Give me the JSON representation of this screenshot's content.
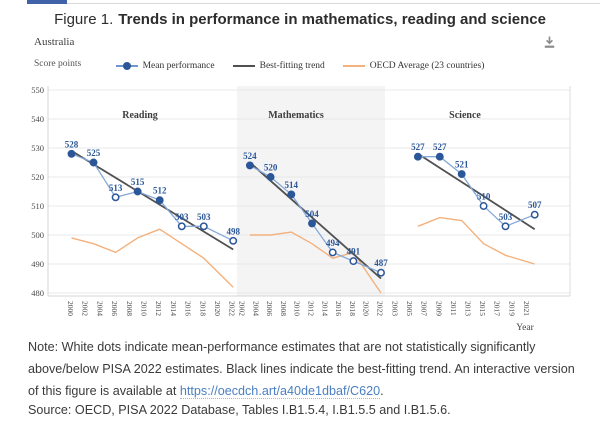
{
  "page": {
    "tab_color": "#3f62a9",
    "link_color": "#4a7fc1",
    "icon_color": "#8b8b8b"
  },
  "header": {
    "figure_label": "Figure 1.",
    "title": "Trends in performance in mathematics, reading and science",
    "country": "Australia"
  },
  "axis": {
    "y_label": "Score points",
    "x_label": "Year"
  },
  "legend": {
    "items": [
      {
        "label": "Mean performance",
        "color": "#2b5798",
        "marker": "dot-line"
      },
      {
        "label": "Best-fitting trend",
        "color": "#505050",
        "marker": "line"
      },
      {
        "label": "OECD Average (23 countries)",
        "color": "#f3b17d",
        "marker": "line"
      }
    ]
  },
  "chart_data": {
    "type": "line",
    "title": "Trends in performance in mathematics, reading and science",
    "country": "Australia",
    "ylabel": "Score points",
    "xlabel": "Year",
    "ylim": [
      480,
      550
    ],
    "yticks": [
      550,
      540,
      530,
      520,
      510,
      500,
      490,
      480
    ],
    "grid": true,
    "legend_position": "top",
    "colors": {
      "mean_point": "#2b5798",
      "mean_line": "#85a9d9",
      "trend_line": "#505050",
      "oecd_line": "#f3b17d",
      "point_label": "#2b5798"
    },
    "panels": [
      {
        "name": "Reading",
        "tick_years": [
          2000,
          2002,
          2004,
          2006,
          2008,
          2010,
          2012,
          2014,
          2016,
          2018,
          2020,
          2022
        ],
        "mean": [
          {
            "year": 2000,
            "value": 528,
            "significant": true
          },
          {
            "year": 2003,
            "value": 525,
            "significant": true
          },
          {
            "year": 2006,
            "value": 513,
            "significant": false
          },
          {
            "year": 2009,
            "value": 515,
            "significant": true
          },
          {
            "year": 2012,
            "value": 512,
            "significant": true
          },
          {
            "year": 2015,
            "value": 503,
            "significant": false
          },
          {
            "year": 2018,
            "value": 503,
            "significant": false
          },
          {
            "year": 2022,
            "value": 498,
            "significant": false
          }
        ],
        "trend": {
          "from_year": 2000,
          "from_value": 529,
          "to_year": 2022,
          "to_value": 495
        },
        "oecd": [
          {
            "year": 2000,
            "value": 499
          },
          {
            "year": 2003,
            "value": 497
          },
          {
            "year": 2006,
            "value": 494
          },
          {
            "year": 2009,
            "value": 499
          },
          {
            "year": 2012,
            "value": 502
          },
          {
            "year": 2015,
            "value": 497
          },
          {
            "year": 2018,
            "value": 492
          },
          {
            "year": 2022,
            "value": 482
          }
        ]
      },
      {
        "name": "Mathematics",
        "shaded": true,
        "tick_years": [
          2002,
          2004,
          2006,
          2008,
          2010,
          2012,
          2014,
          2016,
          2018,
          2020,
          2022
        ],
        "mean": [
          {
            "year": 2003,
            "value": 524,
            "significant": true
          },
          {
            "year": 2006,
            "value": 520,
            "significant": true
          },
          {
            "year": 2009,
            "value": 514,
            "significant": true
          },
          {
            "year": 2012,
            "value": 504,
            "significant": true
          },
          {
            "year": 2015,
            "value": 494,
            "significant": false
          },
          {
            "year": 2018,
            "value": 491,
            "significant": false
          },
          {
            "year": 2022,
            "value": 487,
            "significant": false
          }
        ],
        "trend": {
          "from_year": 2003,
          "from_value": 525,
          "to_year": 2022,
          "to_value": 485
        },
        "oecd": [
          {
            "year": 2003,
            "value": 500
          },
          {
            "year": 2006,
            "value": 500
          },
          {
            "year": 2009,
            "value": 501
          },
          {
            "year": 2012,
            "value": 497
          },
          {
            "year": 2015,
            "value": 492
          },
          {
            "year": 2018,
            "value": 494
          },
          {
            "year": 2022,
            "value": 480
          }
        ]
      },
      {
        "name": "Science",
        "tick_years": [
          2003,
          2005,
          2007,
          2009,
          2011,
          2013,
          2015,
          2017,
          2019,
          2021
        ],
        "mean": [
          {
            "year": 2006,
            "value": 527,
            "significant": true
          },
          {
            "year": 2009,
            "value": 527,
            "significant": true
          },
          {
            "year": 2012,
            "value": 521,
            "significant": true
          },
          {
            "year": 2015,
            "value": 510,
            "significant": false
          },
          {
            "year": 2018,
            "value": 503,
            "significant": false
          },
          {
            "year": 2022,
            "value": 507,
            "significant": false
          }
        ],
        "trend": {
          "from_year": 2006,
          "from_value": 528,
          "to_year": 2022,
          "to_value": 502
        },
        "oecd": [
          {
            "year": 2006,
            "value": 503
          },
          {
            "year": 2009,
            "value": 506
          },
          {
            "year": 2012,
            "value": 505
          },
          {
            "year": 2015,
            "value": 497
          },
          {
            "year": 2018,
            "value": 493
          },
          {
            "year": 2022,
            "value": 490
          }
        ]
      }
    ]
  },
  "note": {
    "prefix": "Note: White dots indicate mean-performance estimates that are not statistically significantly above/below PISA 2022 estimates. Black lines indicate the best-fitting trend. An interactive version of this figure is available at ",
    "link": "https://oecdch.art/a40de1dbaf/C620",
    "suffix": "."
  },
  "source": "Source: OECD, PISA 2022 Database, Tables I.B1.5.4, I.B1.5.5 and I.B1.5.6."
}
